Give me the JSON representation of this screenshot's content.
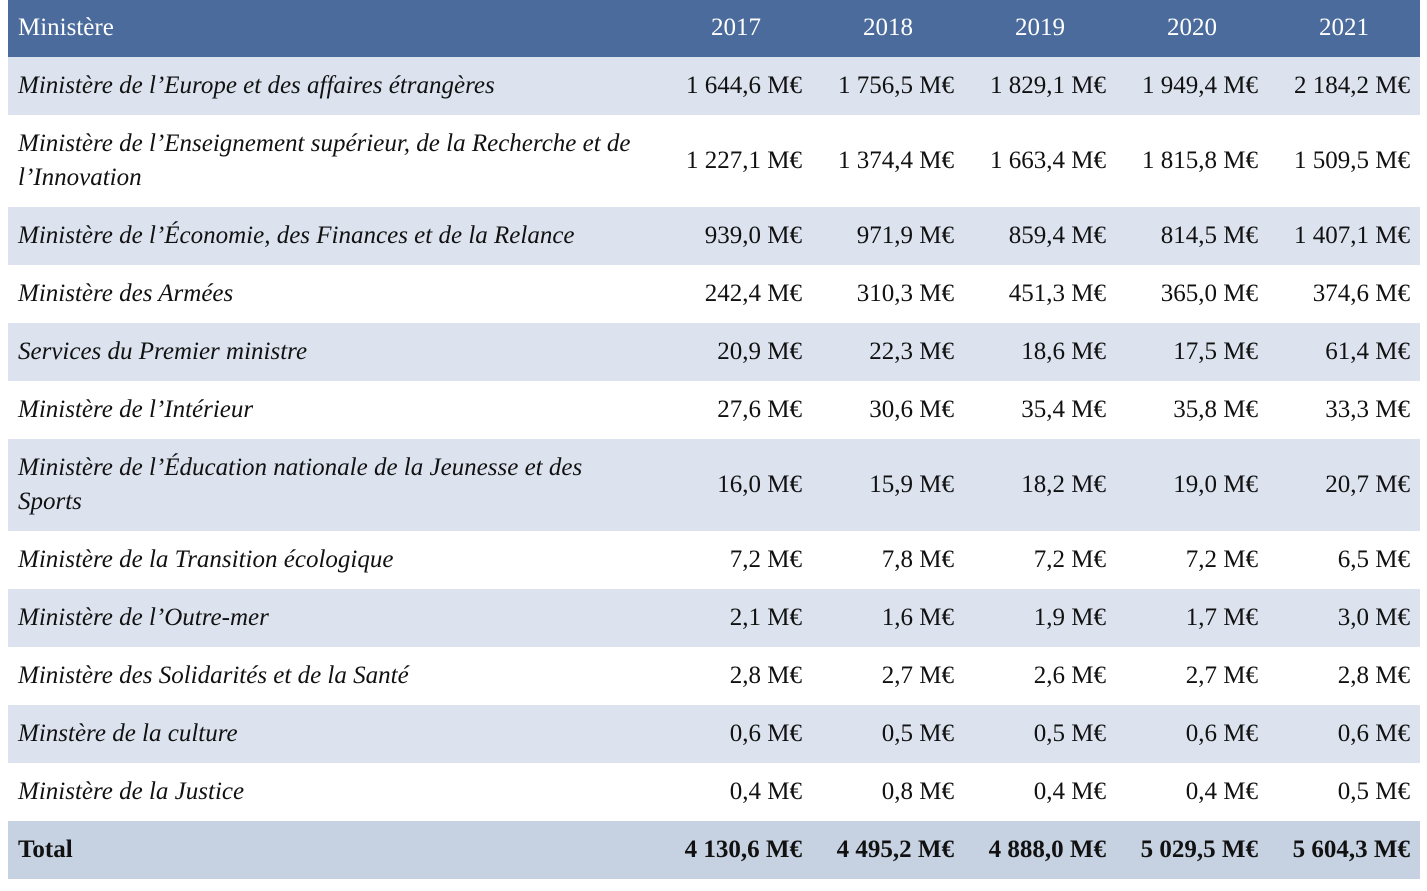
{
  "table": {
    "header": [
      "Ministère",
      "2017",
      "2018",
      "2019",
      "2020",
      "2021"
    ],
    "rows": [
      [
        "Ministère de l’Europe et des affaires étrangères",
        "1 644,6 M€",
        "1 756,5 M€",
        "1 829,1 M€",
        "1 949,4 M€",
        "2 184,2 M€"
      ],
      [
        "Ministère de l’Enseignement supérieur, de la Recherche et de l’Innovation",
        "1 227,1 M€",
        "1 374,4 M€",
        "1 663,4 M€",
        "1 815,8 M€",
        "1 509,5 M€"
      ],
      [
        "Ministère de l’Économie, des Finances et de la Relance",
        "939,0 M€",
        "971,9 M€",
        "859,4 M€",
        "814,5 M€",
        "1 407,1 M€"
      ],
      [
        "Ministère des Armées",
        "242,4 M€",
        "310,3 M€",
        "451,3 M€",
        "365,0 M€",
        "374,6 M€"
      ],
      [
        "Services du Premier ministre",
        "20,9 M€",
        "22,3 M€",
        "18,6 M€",
        "17,5 M€",
        "61,4 M€"
      ],
      [
        "Ministère de l’Intérieur",
        "27,6 M€",
        "30,6 M€",
        "35,4 M€",
        "35,8 M€",
        "33,3 M€"
      ],
      [
        "Ministère de l’Éducation nationale de la Jeunesse et des Sports",
        "16,0 M€",
        "15,9 M€",
        "18,2 M€",
        "19,0 M€",
        "20,7 M€"
      ],
      [
        "Ministère de la Transition écologique",
        "7,2 M€",
        "7,8 M€",
        "7,2 M€",
        "7,2 M€",
        "6,5 M€"
      ],
      [
        "Ministère de l’Outre-mer",
        "2,1 M€",
        "1,6 M€",
        "1,9 M€",
        "1,7 M€",
        "3,0 M€"
      ],
      [
        "Ministère des Solidarités et de la Santé",
        "2,8 M€",
        "2,7 M€",
        "2,6 M€",
        "2,7 M€",
        "2,8 M€"
      ],
      [
        "Minstère de la culture",
        "0,6 M€",
        "0,5 M€",
        "0,5 M€",
        "0,6 M€",
        "0,6 M€"
      ],
      [
        "Ministère de la Justice",
        "0,4 M€",
        "0,8 M€",
        "0,4 M€",
        "0,4 M€",
        "0,5 M€"
      ]
    ],
    "total": [
      "Total",
      "4 130,6 M€",
      "4 495,2 M€",
      "4 888,0 M€",
      "5 029,5 M€",
      "5 604,3 M€"
    ]
  }
}
